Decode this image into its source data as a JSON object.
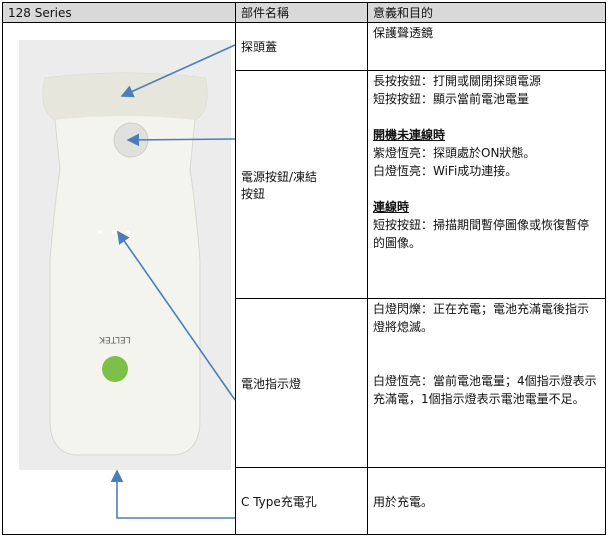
{
  "table": {
    "header": [
      "128 Series",
      "部件名稱",
      "意義和目的"
    ],
    "device_logo": "LELTEK",
    "rows": [
      {
        "part": "探頭蓋",
        "purpose": [
          {
            "lines": [
              "保護聲透鏡"
            ]
          }
        ]
      },
      {
        "part": "電源按鈕/凍結按鈕",
        "purpose": [
          {
            "lines": [
              "長按按鈕：打開或關閉探頭電源",
              "短按按鈕：顯示當前電池電量"
            ]
          },
          {
            "heading": "開機未連線時",
            "lines": [
              "紫燈恆亮：探頭處於ON狀態。",
              "白燈恆亮：WiFi成功連接。"
            ]
          },
          {
            "heading": "連線時",
            "lines": [
              "短按按鈕：掃描期間暫停圖像或恢復暫停的圖像。"
            ]
          }
        ]
      },
      {
        "part": "電池指示燈",
        "purpose": [
          {
            "lines": [
              "白燈閃爍：正在充電；電池充滿電後指示燈將熄滅。"
            ]
          },
          {
            "lines": [
              "白燈恆亮：當前電池電量；4個指示燈表示充滿電，1個指示燈表示電池電量不足。"
            ]
          }
        ]
      },
      {
        "part": "C Type充電孔",
        "purpose": [
          {
            "lines": [
              "用於充電。"
            ]
          }
        ]
      }
    ]
  }
}
